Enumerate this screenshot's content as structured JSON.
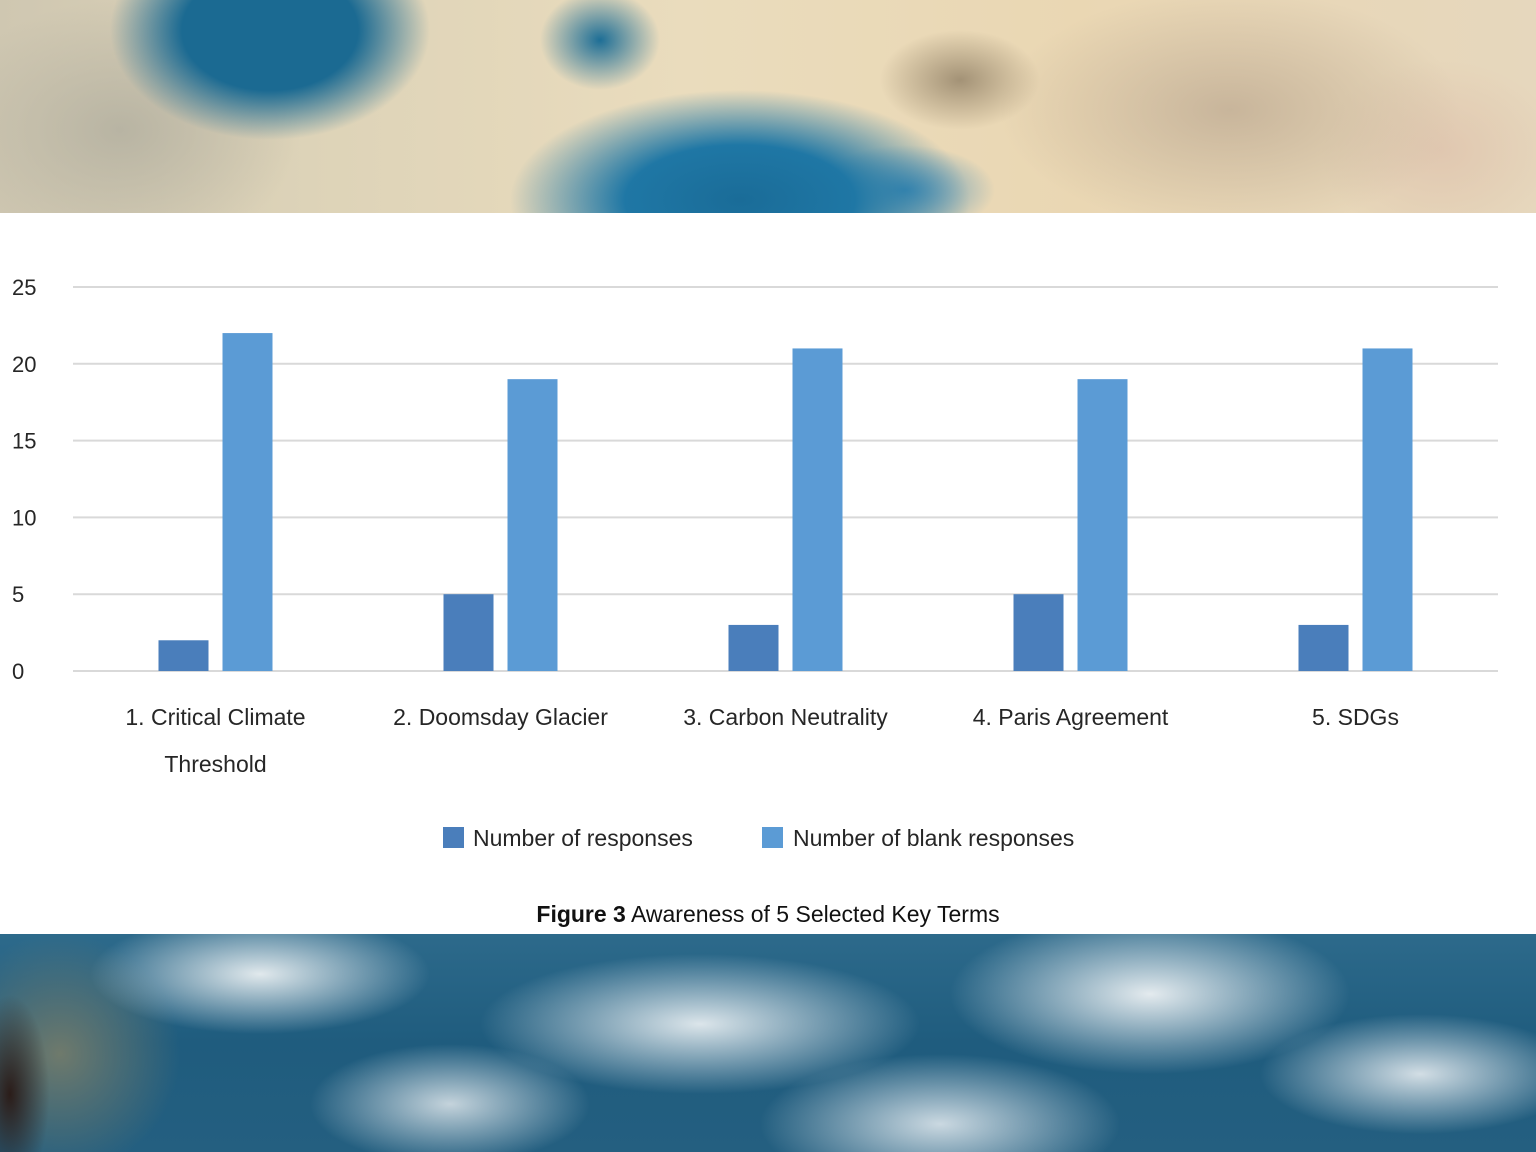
{
  "caption": {
    "label": "Figure 3",
    "text": "Awareness of 5 Selected Key Terms"
  },
  "colors": {
    "responses": "#4a7ebb",
    "blank_responses": "#5b9bd5",
    "gridline": "#d9d9d9",
    "text": "#262626"
  },
  "chart_data": {
    "type": "bar",
    "title": "",
    "xlabel": "",
    "ylabel": "",
    "ylim": [
      0,
      25
    ],
    "yticks": [
      0,
      5,
      10,
      15,
      20,
      25
    ],
    "grid": true,
    "legend_position": "bottom",
    "categories": [
      [
        "1. Critical Climate",
        "Threshold"
      ],
      [
        "2. Doomsday Glacier"
      ],
      [
        "3. Carbon Neutrality"
      ],
      [
        "4. Paris Agreement"
      ],
      [
        "5. SDGs"
      ]
    ],
    "series": [
      {
        "name": "Number of responses",
        "color_key": "responses",
        "values": [
          2,
          5,
          3,
          5,
          3
        ]
      },
      {
        "name": "Number of blank responses",
        "color_key": "blank_responses",
        "values": [
          22,
          19,
          21,
          19,
          21
        ]
      }
    ]
  }
}
